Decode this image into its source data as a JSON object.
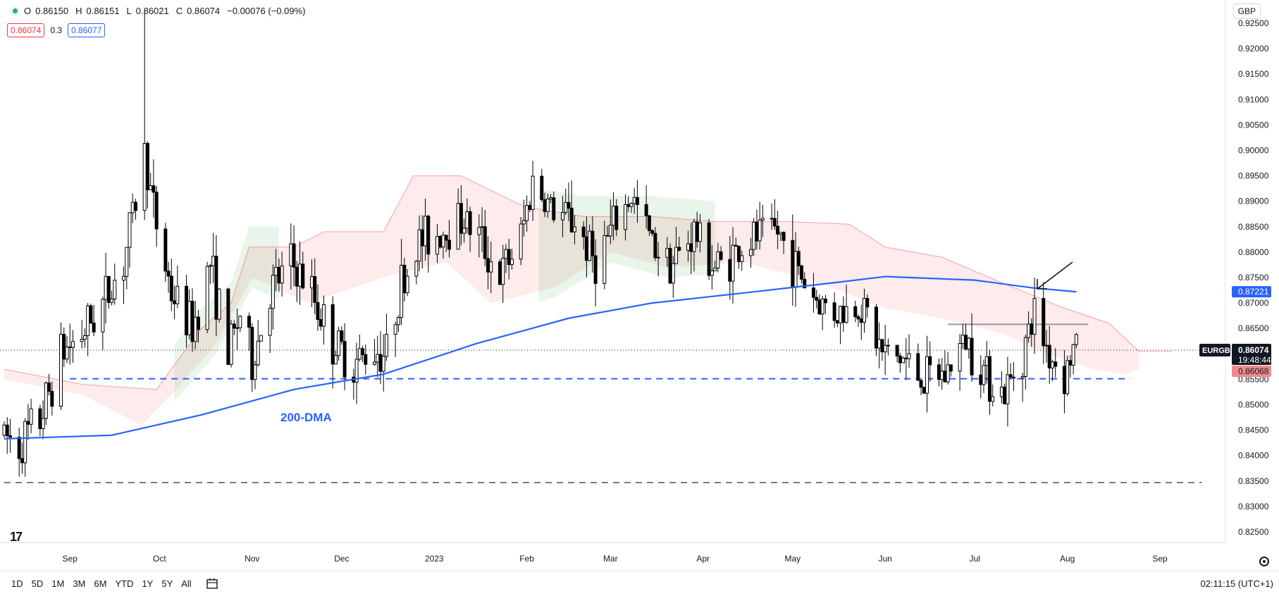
{
  "header": {
    "open_label": "O",
    "open": "0.86150",
    "high_label": "H",
    "high": "0.86151",
    "low_label": "L",
    "low": "0.86021",
    "close_label": "C",
    "close": "0.86074",
    "change": "−0.00076 (−0.09%)"
  },
  "spread": {
    "sell": "0.86074",
    "value": "0.3",
    "buy": "0.86077"
  },
  "currency": "GBP",
  "bottombar": {
    "ranges": [
      "1D",
      "5D",
      "1M",
      "3M",
      "6M",
      "YTD",
      "1Y",
      "5Y",
      "All"
    ],
    "clock": "02:11:15 (UTC+1)"
  },
  "colors": {
    "up": "#ffffff",
    "down": "#000000",
    "dma": "#2962ff",
    "cloud_bear": "#f23645",
    "cloud_bull": "#4caf50",
    "support": "#2962ff"
  },
  "chart_data": {
    "type": "candlestick",
    "symbol": "EURGBP",
    "ylim": [
      0.82,
      0.93
    ],
    "y_ticks": [
      "0.92500",
      "0.92000",
      "0.91500",
      "0.91000",
      "0.90500",
      "0.90000",
      "0.89500",
      "0.89000",
      "0.88500",
      "0.88000",
      "0.87500",
      "0.87000",
      "0.86500",
      "0.86000",
      "0.85500",
      "0.85000",
      "0.84500",
      "0.84000",
      "0.83500",
      "0.83000",
      "0.82500"
    ],
    "x_ticks": [
      {
        "label": "Sep",
        "date": "2022-09-01"
      },
      {
        "label": "Oct",
        "date": "2022-10-01"
      },
      {
        "label": "Nov",
        "date": "2022-11-01"
      },
      {
        "label": "Dec",
        "date": "2022-12-01"
      },
      {
        "label": "2023",
        "date": "2023-01-01"
      },
      {
        "label": "Feb",
        "date": "2023-02-01"
      },
      {
        "label": "Mar",
        "date": "2023-03-01"
      },
      {
        "label": "Apr",
        "date": "2023-04-01"
      },
      {
        "label": "May",
        "date": "2023-05-01"
      },
      {
        "label": "Jun",
        "date": "2023-06-01"
      },
      {
        "label": "Jul",
        "date": "2023-07-01"
      },
      {
        "label": "Aug",
        "date": "2023-08-01"
      },
      {
        "label": "Sep",
        "date": "2023-09-01"
      }
    ],
    "path_points": [
      [
        "2022-08-10",
        0.844
      ],
      [
        "2022-08-15",
        0.842
      ],
      [
        "2022-08-22",
        0.847
      ],
      [
        "2022-08-29",
        0.86
      ],
      [
        "2022-09-05",
        0.864
      ],
      [
        "2022-09-12",
        0.87
      ],
      [
        "2022-09-19",
        0.878
      ],
      [
        "2022-09-23",
        0.89
      ],
      [
        "2022-09-26",
        0.9
      ],
      [
        "2022-09-29",
        0.888
      ],
      [
        "2022-10-05",
        0.872
      ],
      [
        "2022-10-12",
        0.865
      ],
      [
        "2022-10-18",
        0.878
      ],
      [
        "2022-10-24",
        0.86
      ],
      [
        "2022-10-28",
        0.868
      ],
      [
        "2022-11-01",
        0.858
      ],
      [
        "2022-11-07",
        0.872
      ],
      [
        "2022-11-14",
        0.878
      ],
      [
        "2022-11-21",
        0.872
      ],
      [
        "2022-11-28",
        0.862
      ],
      [
        "2022-12-05",
        0.858
      ],
      [
        "2022-12-12",
        0.861
      ],
      [
        "2022-12-16",
        0.86
      ],
      [
        "2022-12-20",
        0.872
      ],
      [
        "2022-12-27",
        0.882
      ],
      [
        "2023-01-03",
        0.884
      ],
      [
        "2023-01-10",
        0.887
      ],
      [
        "2023-01-16",
        0.883
      ],
      [
        "2023-01-23",
        0.875
      ],
      [
        "2023-01-30",
        0.883
      ],
      [
        "2023-02-03",
        0.894
      ],
      [
        "2023-02-10",
        0.888
      ],
      [
        "2023-02-17",
        0.886
      ],
      [
        "2023-02-24",
        0.878
      ],
      [
        "2023-03-03",
        0.886
      ],
      [
        "2023-03-08",
        0.891
      ],
      [
        "2023-03-15",
        0.882
      ],
      [
        "2023-03-22",
        0.878
      ],
      [
        "2023-03-29",
        0.884
      ],
      [
        "2023-04-05",
        0.877
      ],
      [
        "2023-04-12",
        0.88
      ],
      [
        "2023-04-19",
        0.883
      ],
      [
        "2023-04-26",
        0.884
      ],
      [
        "2023-05-03",
        0.876
      ],
      [
        "2023-05-10",
        0.87
      ],
      [
        "2023-05-17",
        0.868
      ],
      [
        "2023-05-24",
        0.87
      ],
      [
        "2023-05-31",
        0.86
      ],
      [
        "2023-06-07",
        0.859
      ],
      [
        "2023-06-14",
        0.855
      ],
      [
        "2023-06-21",
        0.856
      ],
      [
        "2023-06-28",
        0.863
      ],
      [
        "2023-07-05",
        0.856
      ],
      [
        "2023-07-11",
        0.852
      ],
      [
        "2023-07-18",
        0.862
      ],
      [
        "2023-07-21",
        0.868
      ],
      [
        "2023-07-26",
        0.86
      ],
      [
        "2023-07-31",
        0.856
      ],
      [
        "2023-08-03",
        0.8607
      ],
      [
        "2023-08-04",
        0.861
      ]
    ],
    "spike": {
      "date": "2022-09-26",
      "high": 0.9275
    },
    "dma200": {
      "label": "200-DMA",
      "last_value": "0.87221",
      "points": [
        [
          "2022-08-10",
          0.8433
        ],
        [
          "2022-09-15",
          0.844
        ],
        [
          "2022-10-15",
          0.848
        ],
        [
          "2022-11-15",
          0.853
        ],
        [
          "2022-12-15",
          0.856
        ],
        [
          "2023-01-15",
          0.862
        ],
        [
          "2023-02-15",
          0.867
        ],
        [
          "2023-03-15",
          0.87
        ],
        [
          "2023-04-15",
          0.872
        ],
        [
          "2023-05-15",
          0.874
        ],
        [
          "2023-06-01",
          0.8752
        ],
        [
          "2023-07-01",
          0.8745
        ],
        [
          "2023-07-20",
          0.873
        ],
        [
          "2023-08-04",
          0.8722
        ]
      ]
    },
    "cloud_upper": [
      [
        "2022-08-10",
        0.857
      ],
      [
        "2022-09-05",
        0.854
      ],
      [
        "2022-09-30",
        0.853
      ],
      [
        "2022-10-15",
        0.865
      ],
      [
        "2022-10-25",
        0.87
      ],
      [
        "2022-10-31",
        0.881
      ],
      [
        "2022-11-15",
        0.881
      ],
      [
        "2022-11-25",
        0.884
      ],
      [
        "2022-12-15",
        0.884
      ],
      [
        "2022-12-25",
        0.895
      ],
      [
        "2023-01-10",
        0.895
      ],
      [
        "2023-01-31",
        0.889
      ],
      [
        "2023-02-20",
        0.887
      ],
      [
        "2023-03-15",
        0.887
      ],
      [
        "2023-04-05",
        0.886
      ],
      [
        "2023-04-30",
        0.886
      ],
      [
        "2023-05-20",
        0.8855
      ],
      [
        "2023-06-01",
        0.881
      ],
      [
        "2023-06-20",
        0.879
      ],
      [
        "2023-07-10",
        0.874
      ],
      [
        "2023-07-31",
        0.869
      ],
      [
        "2023-08-15",
        0.866
      ],
      [
        "2023-08-25",
        0.8605
      ],
      [
        "2023-09-05",
        0.8605
      ]
    ],
    "cloud_lower": [
      [
        "2022-08-10",
        0.855
      ],
      [
        "2022-09-05",
        0.852
      ],
      [
        "2022-09-25",
        0.846
      ],
      [
        "2022-10-05",
        0.852
      ],
      [
        "2022-10-20",
        0.862
      ],
      [
        "2022-11-01",
        0.875
      ],
      [
        "2022-11-20",
        0.87
      ],
      [
        "2022-12-15",
        0.875
      ],
      [
        "2023-01-05",
        0.878
      ],
      [
        "2023-01-20",
        0.87
      ],
      [
        "2023-02-10",
        0.873
      ],
      [
        "2023-03-01",
        0.88
      ],
      [
        "2023-03-20",
        0.877
      ],
      [
        "2023-04-15",
        0.878
      ],
      [
        "2023-05-10",
        0.874
      ],
      [
        "2023-06-01",
        0.869
      ],
      [
        "2023-06-20",
        0.867
      ],
      [
        "2023-07-10",
        0.864
      ],
      [
        "2023-07-25",
        0.86
      ],
      [
        "2023-08-10",
        0.857
      ],
      [
        "2023-08-20",
        0.856
      ],
      [
        "2023-08-25",
        0.857
      ]
    ],
    "bull_zones": [
      {
        "from": "2022-10-06",
        "to": "2022-11-10"
      },
      {
        "from": "2023-02-05",
        "to": "2023-04-05"
      }
    ],
    "support_line": {
      "value": 0.8551,
      "from": "2022-09-01",
      "to": "2023-08-22"
    },
    "long_term_line": {
      "value": 0.8347,
      "from": "2022-08-10",
      "to": "2023-09-15"
    },
    "resistance_line": {
      "value": 0.8658,
      "from": "2023-06-22",
      "to": "2023-08-08"
    },
    "price_line": {
      "value": 0.86074
    },
    "price_tag": {
      "symbol": "EURGBP",
      "price": "0.86074",
      "countdown": "19:48:44",
      "bid": "0.86068"
    }
  }
}
